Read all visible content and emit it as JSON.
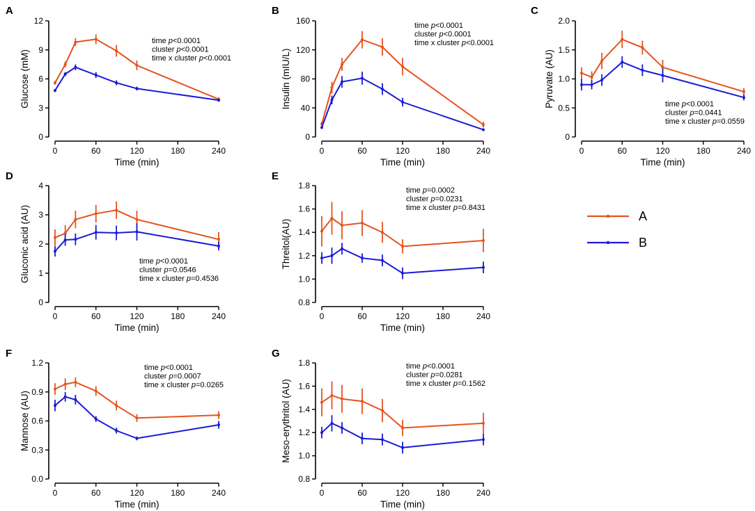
{
  "colors": {
    "A": "#e4531e",
    "B": "#1a1ad6",
    "axis": "#000000"
  },
  "legend": [
    {
      "key": "A",
      "label": "A"
    },
    {
      "key": "B",
      "label": "B"
    }
  ],
  "chart_data": [
    {
      "id": "A",
      "letter": "A",
      "type": "line",
      "ylabel": "Glucose (mM)",
      "xlabel": "Time (min)",
      "ylim": [
        0,
        12
      ],
      "yticks": [
        0,
        3,
        6,
        9,
        12
      ],
      "ytick_labels": [
        "0",
        "3",
        "6",
        "9",
        "12"
      ],
      "xlim": [
        0,
        240
      ],
      "xticks": [
        0,
        60,
        120,
        180,
        240
      ],
      "x": [
        0,
        15,
        30,
        60,
        90,
        120,
        240
      ],
      "series": [
        {
          "name": "A",
          "values": [
            5.6,
            7.5,
            9.8,
            10.1,
            8.9,
            7.4,
            3.9
          ],
          "errors": [
            0.2,
            0.3,
            0.4,
            0.5,
            0.6,
            0.5,
            0.2
          ]
        },
        {
          "name": "B",
          "values": [
            4.8,
            6.5,
            7.2,
            6.4,
            5.6,
            5.0,
            3.8
          ],
          "errors": [
            0.15,
            0.2,
            0.3,
            0.3,
            0.25,
            0.2,
            0.15
          ]
        }
      ],
      "stats": [
        {
          "prefix": "time ",
          "p": "p",
          "value": "<0.0001"
        },
        {
          "prefix": "cluster ",
          "p": "p",
          "value": "<0.0001"
        },
        {
          "prefix": "time x cluster ",
          "p": "p",
          "value": "<0.0001"
        }
      ]
    },
    {
      "id": "B",
      "letter": "B",
      "type": "line",
      "ylabel": "Insulin (mIU/L)",
      "xlabel": "Time (min)",
      "ylim": [
        0,
        160
      ],
      "yticks": [
        0,
        40,
        80,
        120,
        160
      ],
      "ytick_labels": [
        "0",
        "40",
        "80",
        "120",
        "160"
      ],
      "xlim": [
        0,
        240
      ],
      "xticks": [
        0,
        60,
        120,
        180,
        240
      ],
      "x": [
        0,
        15,
        30,
        60,
        90,
        120,
        240
      ],
      "series": [
        {
          "name": "A",
          "values": [
            18,
            68,
            100,
            134,
            124,
            97,
            17
          ],
          "errors": [
            3,
            8,
            9,
            12,
            12,
            12,
            4
          ]
        },
        {
          "name": "B",
          "values": [
            13,
            51,
            76,
            81,
            66,
            48,
            10
          ],
          "errors": [
            2,
            6,
            8,
            9,
            8,
            6,
            2
          ]
        }
      ],
      "stats": [
        {
          "prefix": "time ",
          "p": "p",
          "value": "<0.0001"
        },
        {
          "prefix": "cluster ",
          "p": "p",
          "value": "<0.0001"
        },
        {
          "prefix": "time x cluster ",
          "p": "p",
          "value": "<0.0001"
        }
      ]
    },
    {
      "id": "C",
      "letter": "C",
      "type": "line",
      "ylabel": "Pyruvate (AU)",
      "xlabel": "Time (min)",
      "ylim": [
        0,
        2
      ],
      "yticks": [
        0,
        0.5,
        1,
        1.5,
        2
      ],
      "ytick_labels": [
        "0",
        "0.5",
        "1.0",
        "1.5",
        "2.0"
      ],
      "xlim": [
        0,
        240
      ],
      "xticks": [
        0,
        60,
        120,
        180,
        240
      ],
      "x": [
        0,
        15,
        30,
        60,
        90,
        120,
        240
      ],
      "series": [
        {
          "name": "A",
          "values": [
            1.1,
            1.03,
            1.31,
            1.68,
            1.54,
            1.2,
            0.78
          ],
          "errors": [
            0.1,
            0.1,
            0.14,
            0.15,
            0.12,
            0.13,
            0.06
          ]
        },
        {
          "name": "B",
          "values": [
            0.9,
            0.9,
            0.98,
            1.29,
            1.15,
            1.06,
            0.68
          ],
          "errors": [
            0.1,
            0.08,
            0.1,
            0.1,
            0.1,
            0.12,
            0.05
          ]
        }
      ],
      "stats": [
        {
          "prefix": "time ",
          "p": "p",
          "value": "<0.0001"
        },
        {
          "prefix": "cluster ",
          "p": "p",
          "value": "=0.0441"
        },
        {
          "prefix": "time x cluster ",
          "p": "p",
          "value": "=0.0559"
        }
      ]
    },
    {
      "id": "D",
      "letter": "D",
      "type": "line",
      "ylabel": "Gluconic acid (AU)",
      "xlabel": "Time (min)",
      "ylim": [
        0,
        4
      ],
      "yticks": [
        0,
        1,
        2,
        3,
        4
      ],
      "ytick_labels": [
        "0",
        "1",
        "2",
        "3",
        "4"
      ],
      "xlim": [
        0,
        240
      ],
      "xticks": [
        0,
        60,
        120,
        180,
        240
      ],
      "x": [
        0,
        15,
        30,
        60,
        90,
        120,
        240
      ],
      "series": [
        {
          "name": "A",
          "values": [
            2.22,
            2.37,
            2.84,
            3.04,
            3.16,
            2.84,
            2.16
          ],
          "errors": [
            0.28,
            0.28,
            0.3,
            0.3,
            0.3,
            0.3,
            0.25
          ]
        },
        {
          "name": "B",
          "values": [
            1.75,
            2.14,
            2.16,
            2.4,
            2.38,
            2.42,
            1.93
          ],
          "errors": [
            0.18,
            0.2,
            0.2,
            0.25,
            0.25,
            0.3,
            0.15
          ]
        }
      ],
      "stats": [
        {
          "prefix": "time ",
          "p": "p",
          "value": "<0.0001"
        },
        {
          "prefix": "cluster ",
          "p": "p",
          "value": "=0.0546"
        },
        {
          "prefix": "time x cluster ",
          "p": "p",
          "value": "=0.4536"
        }
      ]
    },
    {
      "id": "E",
      "letter": "E",
      "type": "line",
      "ylabel": "Threitol(AU)",
      "xlabel": "Time (min)",
      "ylim": [
        0.8,
        1.8
      ],
      "yticks": [
        0.8,
        1.0,
        1.2,
        1.4,
        1.6,
        1.8
      ],
      "ytick_labels": [
        "0.8",
        "1.0",
        "1.2",
        "1.4",
        "1.6",
        "1.8"
      ],
      "xlim": [
        0,
        240
      ],
      "xticks": [
        0,
        60,
        120,
        180,
        240
      ],
      "x": [
        0,
        15,
        30,
        60,
        90,
        120,
        240
      ],
      "series": [
        {
          "name": "A",
          "values": [
            1.41,
            1.52,
            1.46,
            1.48,
            1.4,
            1.28,
            1.33
          ],
          "errors": [
            0.13,
            0.14,
            0.12,
            0.11,
            0.09,
            0.06,
            0.1
          ]
        },
        {
          "name": "B",
          "values": [
            1.18,
            1.2,
            1.26,
            1.18,
            1.16,
            1.05,
            1.1
          ],
          "errors": [
            0.05,
            0.07,
            0.05,
            0.04,
            0.05,
            0.05,
            0.05
          ]
        }
      ],
      "stats": [
        {
          "prefix": "time ",
          "p": "p",
          "value": "=0.0002"
        },
        {
          "prefix": "cluster ",
          "p": "p",
          "value": "=0.0231"
        },
        {
          "prefix": "time x cluster ",
          "p": "p",
          "value": "=0.8431"
        }
      ]
    },
    {
      "id": "F",
      "letter": "F",
      "type": "line",
      "ylabel": "Mannose (AU)",
      "xlabel": "Time (min)",
      "ylim": [
        0,
        1.2
      ],
      "yticks": [
        0,
        0.3,
        0.6,
        0.9,
        1.2
      ],
      "ytick_labels": [
        "0.0",
        "0.3",
        "0.6",
        "0.9",
        "1.2"
      ],
      "xlim": [
        0,
        240
      ],
      "xticks": [
        0,
        60,
        120,
        180,
        240
      ],
      "x": [
        0,
        15,
        30,
        60,
        90,
        120,
        240
      ],
      "series": [
        {
          "name": "A",
          "values": [
            0.93,
            0.98,
            1.0,
            0.91,
            0.76,
            0.63,
            0.66
          ],
          "errors": [
            0.06,
            0.06,
            0.05,
            0.05,
            0.05,
            0.04,
            0.04
          ]
        },
        {
          "name": "B",
          "values": [
            0.76,
            0.85,
            0.82,
            0.62,
            0.5,
            0.42,
            0.56
          ],
          "errors": [
            0.06,
            0.05,
            0.05,
            0.03,
            0.03,
            0.02,
            0.04
          ]
        }
      ],
      "stats": [
        {
          "prefix": "time ",
          "p": "p",
          "value": "<0.0001"
        },
        {
          "prefix": "cluster ",
          "p": "p",
          "value": "=0.0007"
        },
        {
          "prefix": "time x cluster ",
          "p": "p",
          "value": "=0.0265"
        }
      ]
    },
    {
      "id": "G",
      "letter": "G",
      "type": "line",
      "ylabel": "Meso-erythritol (AU)",
      "xlabel": "Time (min)",
      "ylim": [
        0.8,
        1.8
      ],
      "yticks": [
        0.8,
        1.0,
        1.2,
        1.4,
        1.6,
        1.8
      ],
      "ytick_labels": [
        "0.8",
        "1.0",
        "1.2",
        "1.4",
        "1.6",
        "1.8"
      ],
      "xlim": [
        0,
        240
      ],
      "xticks": [
        0,
        60,
        120,
        180,
        240
      ],
      "x": [
        0,
        15,
        30,
        60,
        90,
        120,
        240
      ],
      "series": [
        {
          "name": "A",
          "values": [
            1.46,
            1.52,
            1.49,
            1.47,
            1.39,
            1.24,
            1.28
          ],
          "errors": [
            0.12,
            0.12,
            0.12,
            0.11,
            0.1,
            0.07,
            0.09
          ]
        },
        {
          "name": "B",
          "values": [
            1.2,
            1.28,
            1.24,
            1.15,
            1.14,
            1.07,
            1.14
          ],
          "errors": [
            0.05,
            0.07,
            0.05,
            0.05,
            0.05,
            0.05,
            0.05
          ]
        }
      ],
      "stats": [
        {
          "prefix": "time ",
          "p": "p",
          "value": "<0.0001"
        },
        {
          "prefix": "cluster ",
          "p": "p",
          "value": "=0.0281"
        },
        {
          "prefix": "time x cluster ",
          "p": "p",
          "value": "=0.1562"
        }
      ]
    }
  ]
}
